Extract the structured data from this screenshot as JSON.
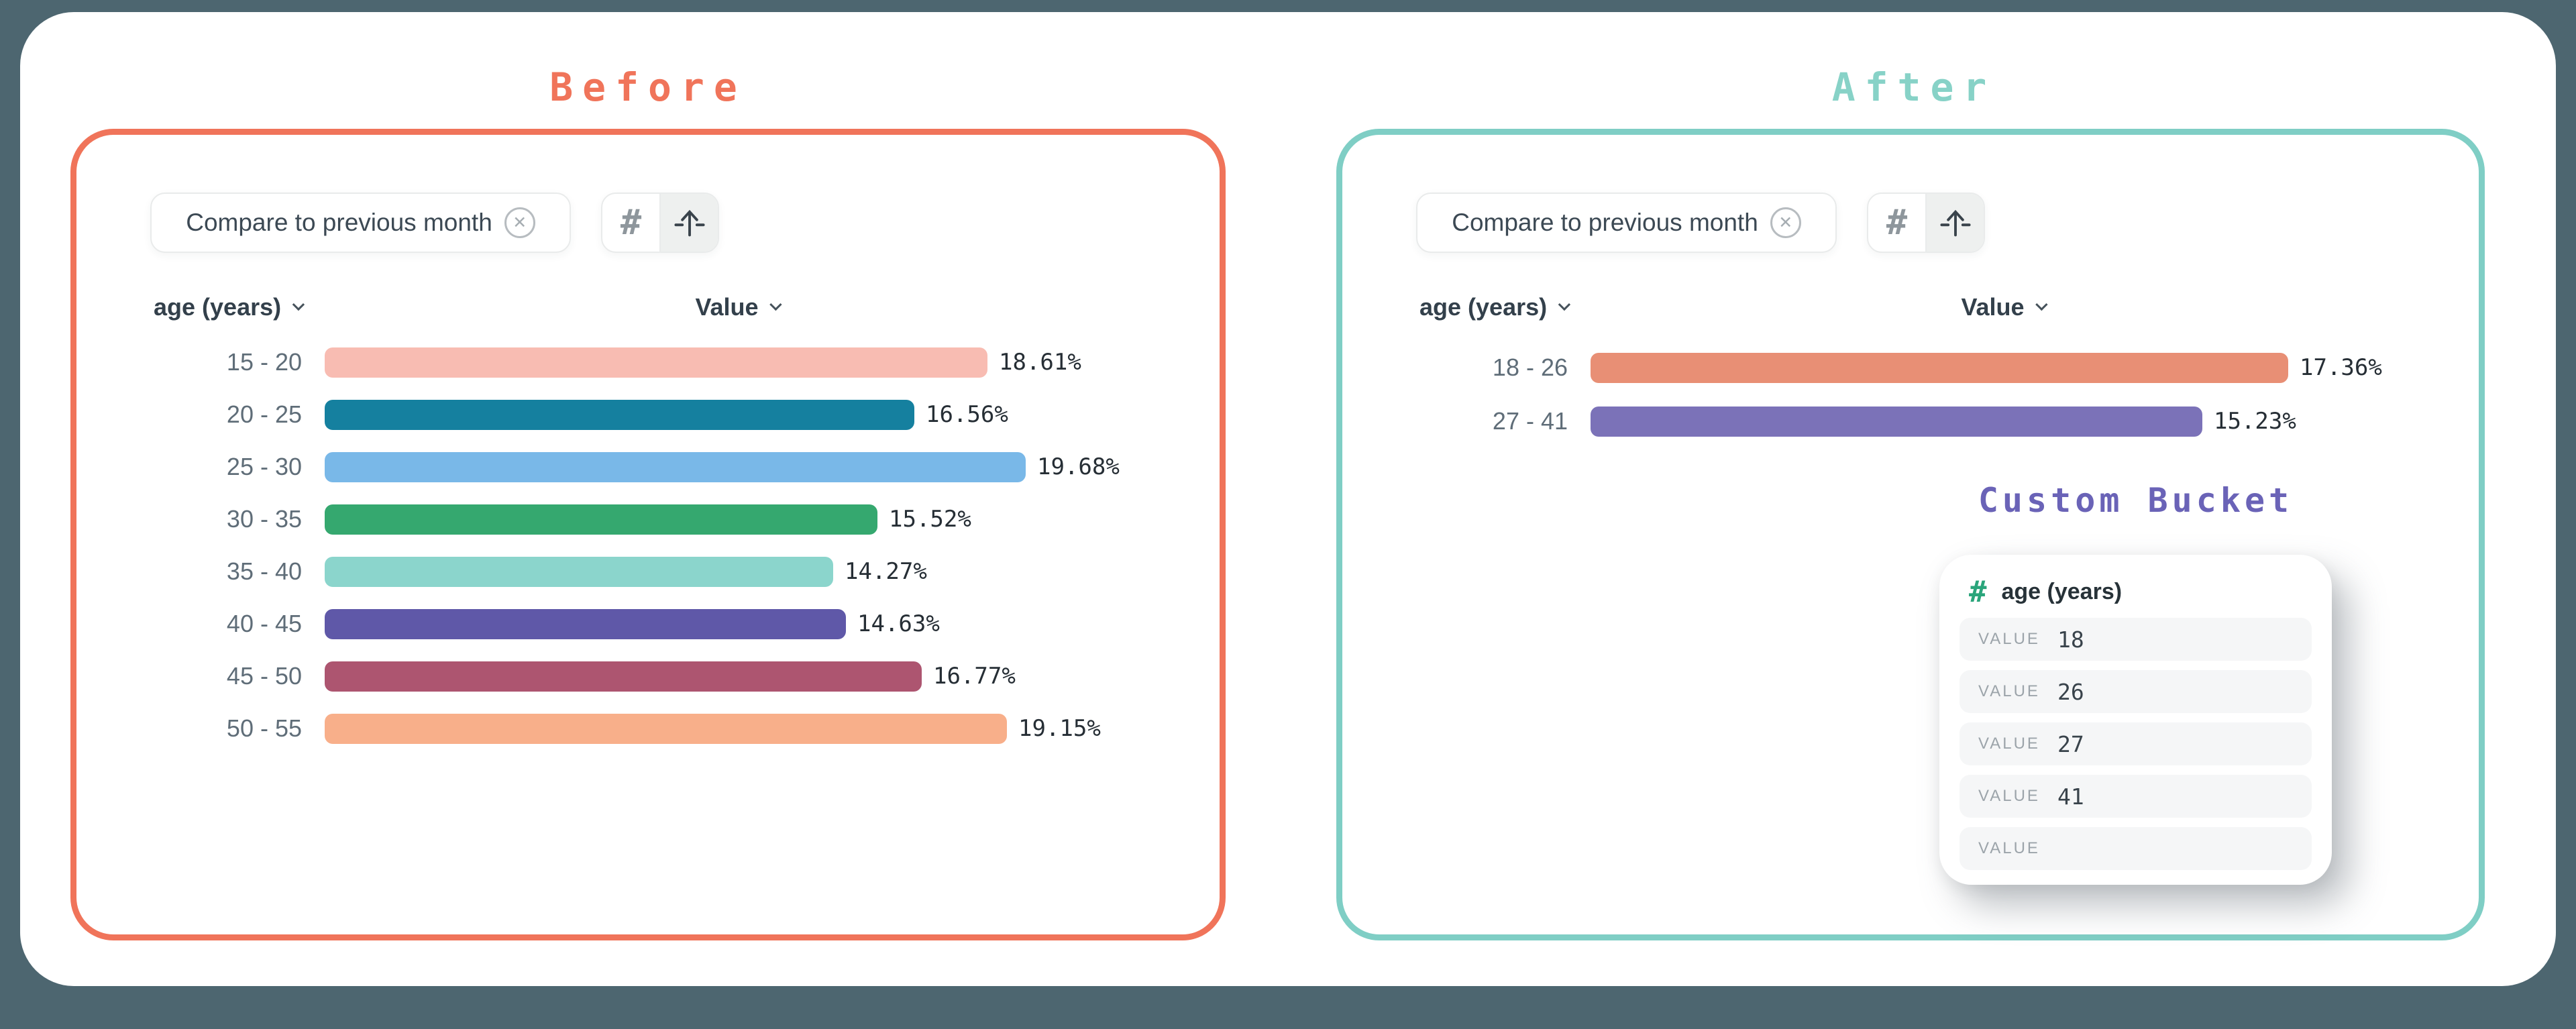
{
  "page": {
    "background_color": "#4D6670",
    "card_color": "#FFFFFF"
  },
  "before_panel": {
    "title": "Before",
    "accent_color": "#F0745A",
    "filter_chip": {
      "label": "Compare to previous month"
    },
    "view_toggle": {
      "options": [
        "number-format",
        "axis-flip"
      ],
      "selected": "axis-flip"
    },
    "columns": {
      "dimension": "age (years)",
      "measure": "Value"
    }
  },
  "after_panel": {
    "title": "After",
    "accent_color": "#7FCEC5",
    "filter_chip": {
      "label": "Compare to previous month"
    },
    "view_toggle": {
      "options": [
        "number-format",
        "axis-flip"
      ],
      "selected": "axis-flip"
    },
    "columns": {
      "dimension": "age (years)",
      "measure": "Value"
    }
  },
  "chart_data": [
    {
      "type": "bar",
      "orientation": "horizontal",
      "panel": "Before",
      "title": "age (years) value distribution (before custom bucketing)",
      "categories": [
        "15 - 20",
        "20 - 25",
        "25 - 30",
        "30 - 35",
        "35 - 40",
        "40 - 45",
        "45 - 50",
        "50 - 55"
      ],
      "values": [
        18.61,
        16.56,
        19.68,
        15.52,
        14.27,
        14.63,
        16.77,
        19.15
      ],
      "value_labels": [
        "18.61%",
        "16.56%",
        "19.68%",
        "15.52%",
        "14.27%",
        "14.63%",
        "16.77%",
        "19.15%"
      ],
      "unit": "%",
      "xlim": [
        0,
        19.68
      ],
      "colors": [
        "#F8BCB2",
        "#15809F",
        "#79B8E8",
        "#35A86F",
        "#8BD5CC",
        "#5F58A8",
        "#AD5570",
        "#F8AF8A"
      ],
      "dotted": [
        false,
        false,
        false,
        false,
        false,
        false,
        false,
        true
      ],
      "legend": "none",
      "grid": "off"
    },
    {
      "type": "bar",
      "orientation": "horizontal",
      "panel": "After",
      "title": "age (years) value distribution (after custom bucketing)",
      "categories": [
        "18 - 26",
        "27 - 41"
      ],
      "values": [
        17.36,
        15.23
      ],
      "value_labels": [
        "17.36%",
        "15.23%"
      ],
      "unit": "%",
      "xlim": [
        0,
        17.36
      ],
      "colors": [
        "#E88F75",
        "#7B72B8"
      ],
      "dotted": [
        false,
        false
      ],
      "legend": "none",
      "grid": "off"
    }
  ],
  "custom_bucket": {
    "title": "Custom Bucket",
    "title_color": "#6A63B7",
    "field": {
      "icon": "hash",
      "label": "age (years)"
    },
    "rows": [
      {
        "label": "VALUE",
        "value": "18"
      },
      {
        "label": "VALUE",
        "value": "26"
      },
      {
        "label": "VALUE",
        "value": "27"
      },
      {
        "label": "VALUE",
        "value": "41"
      },
      {
        "label": "VALUE",
        "value": ""
      }
    ]
  }
}
